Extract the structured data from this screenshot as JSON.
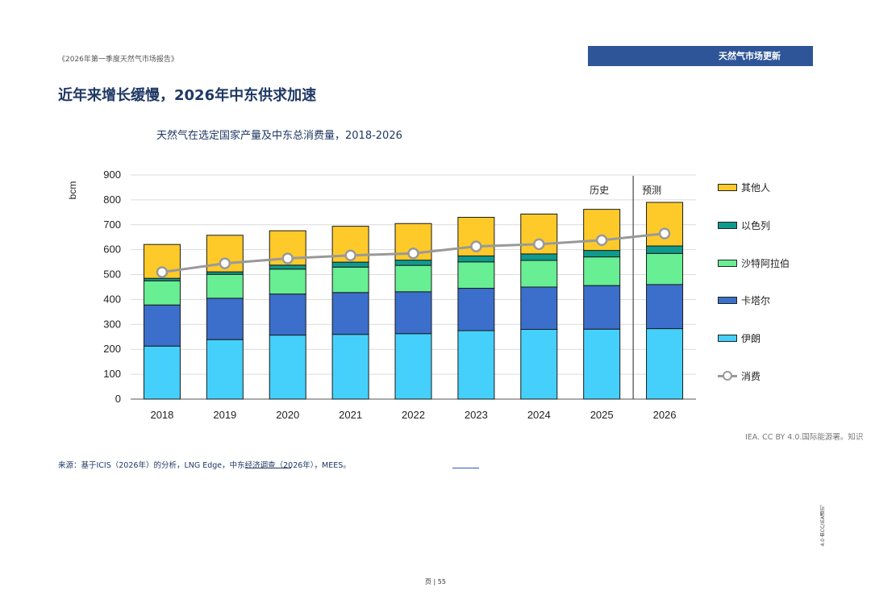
{
  "header": {
    "report_name": "《2026年第一季度天然气市场报告》",
    "section": "天然气市场更新"
  },
  "page_title": "近年来增长缓慢，2026年中东供求加速",
  "footer": {
    "credit": "IEA. CC BY 4.0.国际能源署。知识",
    "source": "来源：基于ICIS（2026年）的分析，LNG Edge，中东经济调查（2026年），MEES。",
    "side_text": "4.0 由CC/IEA通讯。",
    "page_number": "页 | 55"
  },
  "chart_data": {
    "type": "bar",
    "stacked": true,
    "title": "天然气在选定国家产量及中东总消费量，2018-2026",
    "ylabel": "bcm",
    "ylim": [
      0,
      900
    ],
    "yticks": [
      0,
      100,
      200,
      300,
      400,
      500,
      600,
      700,
      800,
      900
    ],
    "categories": [
      "2018",
      "2019",
      "2020",
      "2021",
      "2022",
      "2023",
      "2024",
      "2025",
      "2026"
    ],
    "series": [
      {
        "name": "伊朗",
        "color": "#45d0fb",
        "values": [
          213,
          239,
          257,
          260,
          263,
          275,
          280,
          281,
          283
        ]
      },
      {
        "name": "卡塔尔",
        "color": "#3b6fcb",
        "values": [
          165,
          166,
          165,
          168,
          168,
          170,
          170,
          175,
          177
        ]
      },
      {
        "name": "沙特阿拉伯",
        "color": "#68ee93",
        "values": [
          97,
          96,
          100,
          102,
          106,
          106,
          107,
          115,
          125
        ]
      },
      {
        "name": "以色列",
        "color": "#0e9b8e",
        "values": [
          10,
          10,
          16,
          20,
          21,
          24,
          26,
          26,
          30
        ]
      },
      {
        "name": "其他人",
        "color": "#fdca2a",
        "values": [
          136,
          147,
          138,
          144,
          147,
          155,
          160,
          165,
          175
        ]
      }
    ],
    "line_series": {
      "name": "消费",
      "color": "#999999",
      "values": [
        510,
        545,
        565,
        577,
        585,
        613,
        622,
        638,
        665
      ]
    },
    "divider_after": "2025",
    "annotations": [
      "历史",
      "预测"
    ],
    "legend_order": [
      "其他人",
      "以色列",
      "沙特阿拉伯",
      "卡塔尔",
      "伊朗",
      "消费"
    ],
    "legend_position": "right",
    "grid": true
  }
}
